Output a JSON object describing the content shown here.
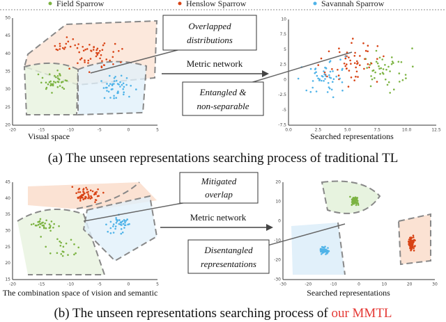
{
  "legend": [
    {
      "label": "Field Sparrow",
      "color": "#7cb342"
    },
    {
      "label": "Henslow Sparrow",
      "color": "#d84315"
    },
    {
      "label": "Savannah Sparrow",
      "color": "#4fb3e8"
    }
  ],
  "panel_a": {
    "left_plot": {
      "label": "Visual space",
      "xticks": [
        "-20",
        "-15",
        "-10",
        "-5",
        "0",
        "5"
      ],
      "yticks": [
        "50",
        "45",
        "40",
        "35",
        "30",
        "25",
        "20"
      ]
    },
    "right_plot": {
      "label": "Searched representations",
      "xticks": [
        "0.0",
        "2.5",
        "5.0",
        "7.5",
        "10.0",
        "12.5"
      ],
      "yticks": [
        "10",
        "7.5",
        "5",
        "2.5",
        "0",
        "-2.5",
        "-5",
        "-7.5"
      ]
    },
    "callout_top": [
      "Overlapped",
      "distributions"
    ],
    "callout_bottom": [
      "Entangled &",
      "non-separable"
    ],
    "arrow_label": "Metric network",
    "caption": "(a) The unseen representations searching process of traditional TL"
  },
  "panel_b": {
    "left_plot": {
      "label": "The combination space of vision and semantic",
      "xticks": [
        "-20",
        "-15",
        "-10",
        "-5",
        "0",
        "5"
      ],
      "yticks": [
        "45",
        "40",
        "35",
        "30",
        "25",
        "20",
        "15"
      ]
    },
    "right_plot": {
      "label": "Searched representations",
      "xticks": [
        "-30",
        "-20",
        "-10",
        "0",
        "10",
        "20",
        "30"
      ],
      "yticks": [
        "20",
        "10",
        "0",
        "-10",
        "-20",
        "-30"
      ]
    },
    "callout_top": [
      "Mitigated",
      "overlap"
    ],
    "callout_bottom": [
      "Disentangled",
      "representations"
    ],
    "arrow_label": "Metric network",
    "caption": {
      "text": "(b) The unseen representations searching process of ",
      "highlight": "our MMTL"
    }
  }
}
